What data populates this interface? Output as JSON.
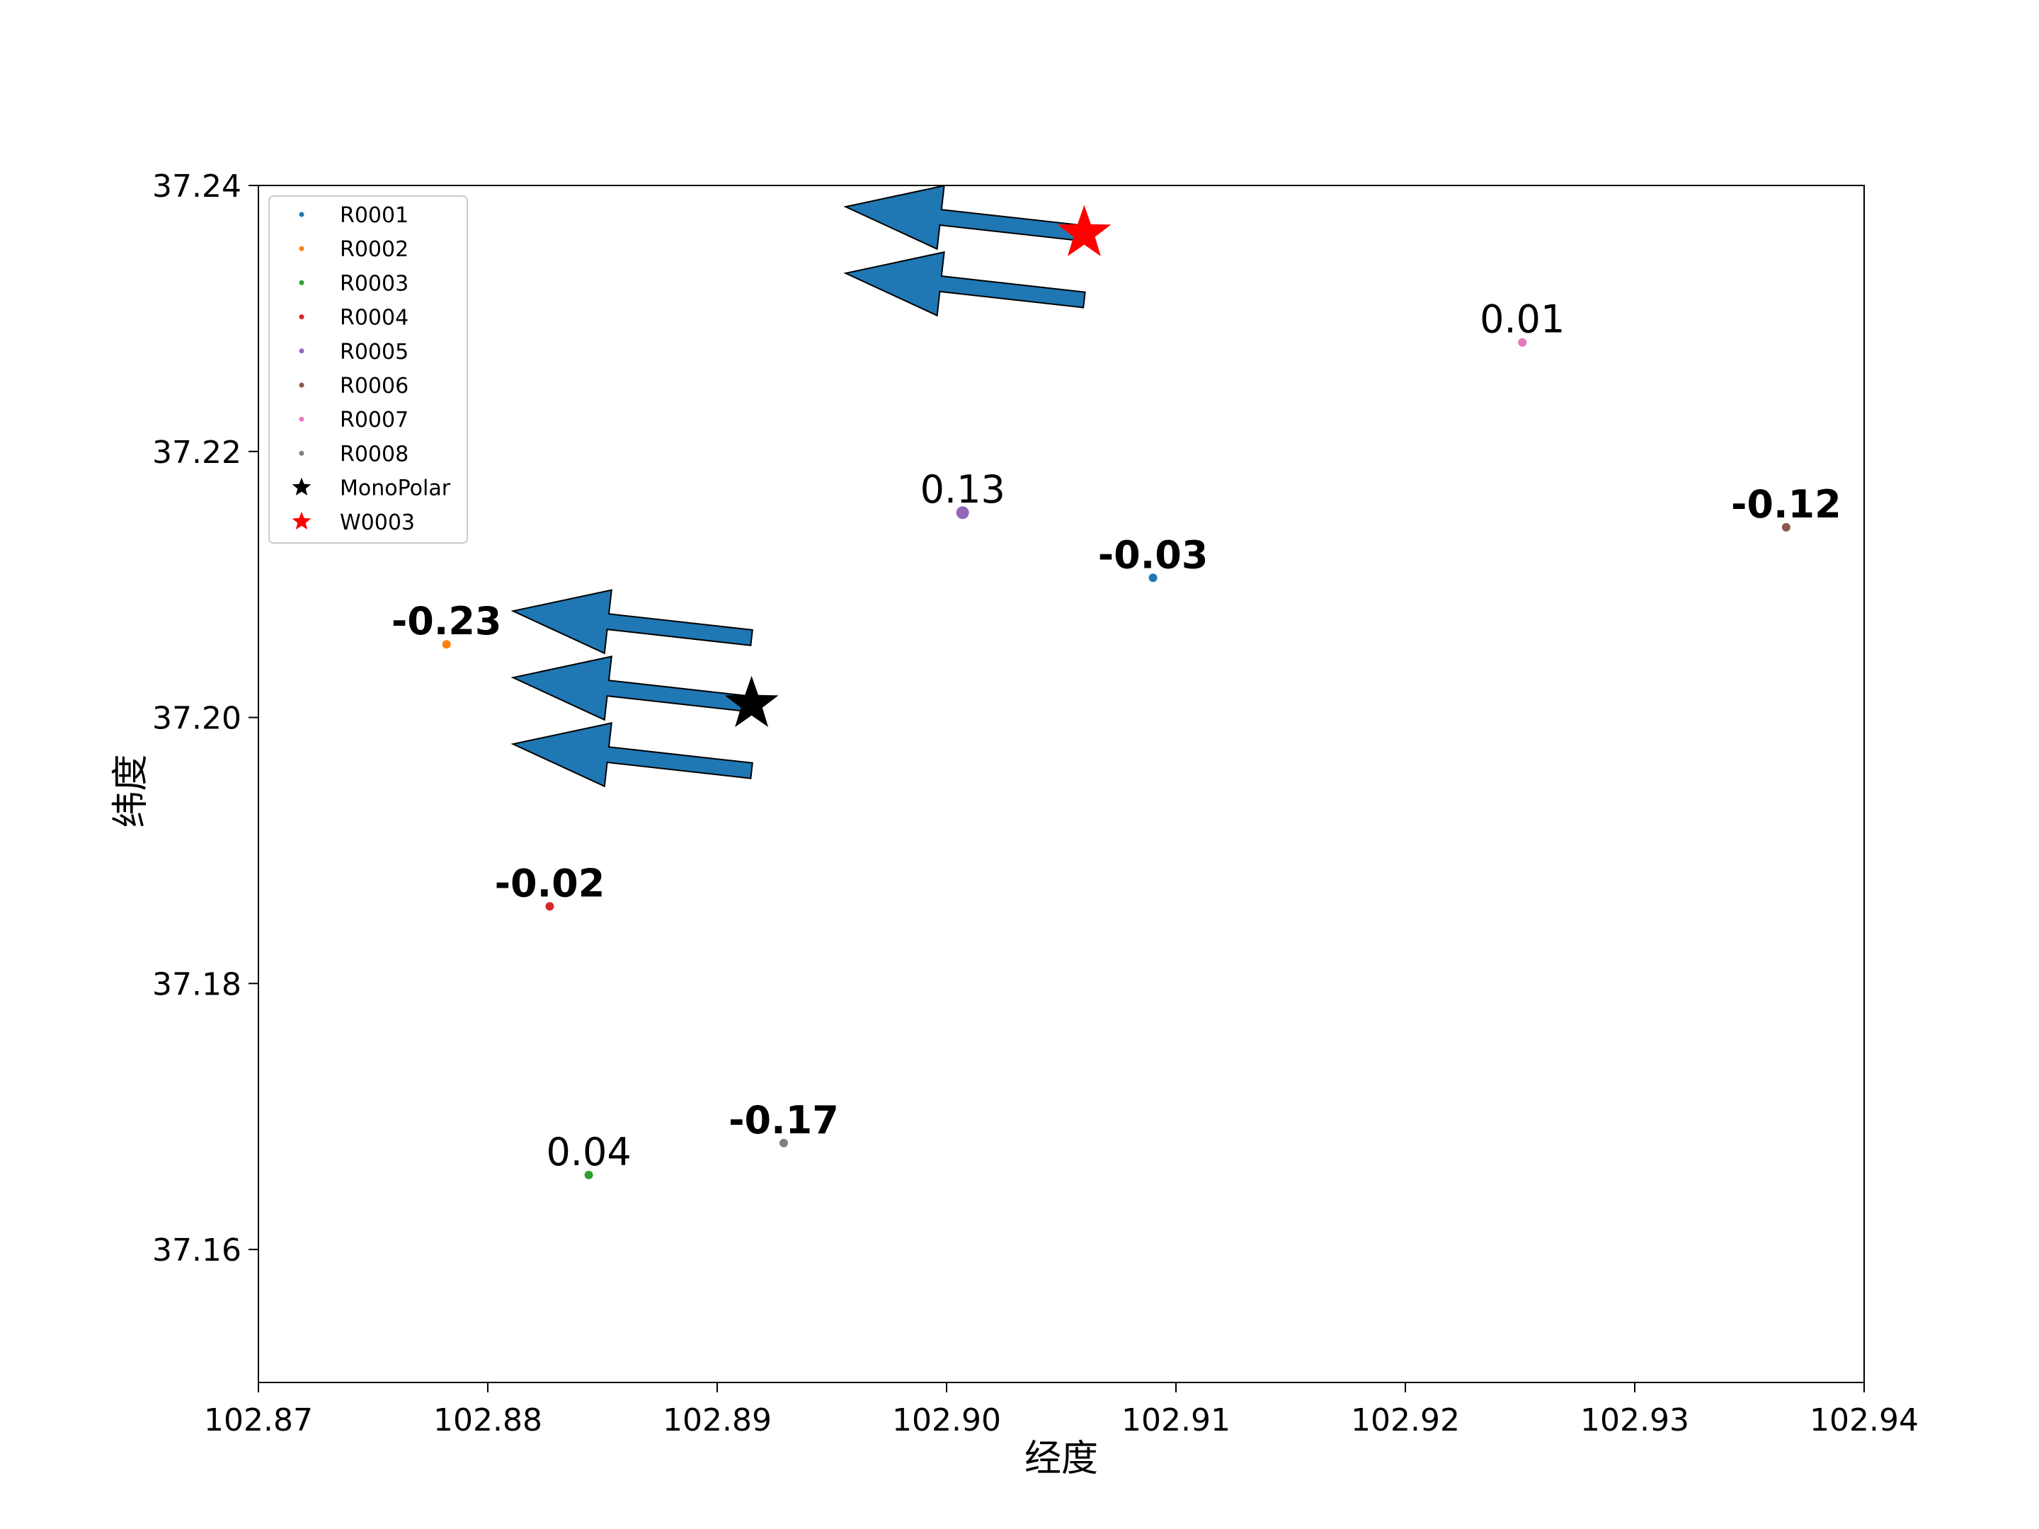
{
  "chart_data": {
    "type": "scatter",
    "xlabel": "经度",
    "ylabel": "纬度",
    "xlim": [
      102.87,
      102.94
    ],
    "ylim": [
      37.15,
      37.24
    ],
    "xticks": [
      102.87,
      102.88,
      102.89,
      102.9,
      102.91,
      102.92,
      102.93,
      102.94
    ],
    "xtick_labels": [
      "102.87",
      "102.88",
      "102.89",
      "102.90",
      "102.91",
      "102.92",
      "102.93",
      "102.94"
    ],
    "yticks": [
      37.16,
      37.18,
      37.2,
      37.22,
      37.24
    ],
    "ytick_labels": [
      "37.16",
      "37.18",
      "37.20",
      "37.22",
      "37.24"
    ],
    "grid": false,
    "legend_position": "top-left",
    "series": [
      {
        "name": "R0001",
        "x": 102.909,
        "y": 37.2105,
        "color": "#1f77b4",
        "label": "-0.03",
        "bold": true
      },
      {
        "name": "R0002",
        "x": 102.8782,
        "y": 37.2055,
        "color": "#ff7f0e",
        "label": "-0.23",
        "bold": true
      },
      {
        "name": "R0003",
        "x": 102.8844,
        "y": 37.1656,
        "color": "#2ca02c",
        "label": "0.04",
        "bold": false
      },
      {
        "name": "R0004",
        "x": 102.8827,
        "y": 37.1858,
        "color": "#d62728",
        "label": "-0.02",
        "bold": true
      },
      {
        "name": "R0005",
        "x": 102.9007,
        "y": 37.2154,
        "color": "#9467bd",
        "label": "0.13",
        "bold": false
      },
      {
        "name": "R0006",
        "x": 102.9366,
        "y": 37.2143,
        "color": "#8c564b",
        "label": "-0.12",
        "bold": true
      },
      {
        "name": "R0007",
        "x": 102.9251,
        "y": 37.2282,
        "color": "#e377c2",
        "label": "0.01",
        "bold": false
      },
      {
        "name": "R0008",
        "x": 102.8929,
        "y": 37.168,
        "color": "#7f7f7f",
        "label": "-0.17",
        "bold": true
      }
    ],
    "markers": [
      {
        "name": "MonoPolar",
        "x": 102.8915,
        "y": 37.201,
        "color": "#000000",
        "shape": "star"
      },
      {
        "name": "W0003",
        "x": 102.906,
        "y": 37.2364,
        "color": "#ff0000",
        "shape": "star"
      }
    ],
    "arrows": [
      {
        "x": 102.906,
        "y": 37.2364,
        "dx": -0.0104,
        "dy": 0.002
      },
      {
        "x": 102.906,
        "y": 37.2314,
        "dx": -0.0104,
        "dy": 0.002
      },
      {
        "x": 102.8915,
        "y": 37.206,
        "dx": -0.0104,
        "dy": 0.002
      },
      {
        "x": 102.8915,
        "y": 37.201,
        "dx": -0.0104,
        "dy": 0.002
      },
      {
        "x": 102.8915,
        "y": 37.196,
        "dx": -0.0104,
        "dy": 0.002
      }
    ],
    "arrow_color": "#1f77b4"
  }
}
